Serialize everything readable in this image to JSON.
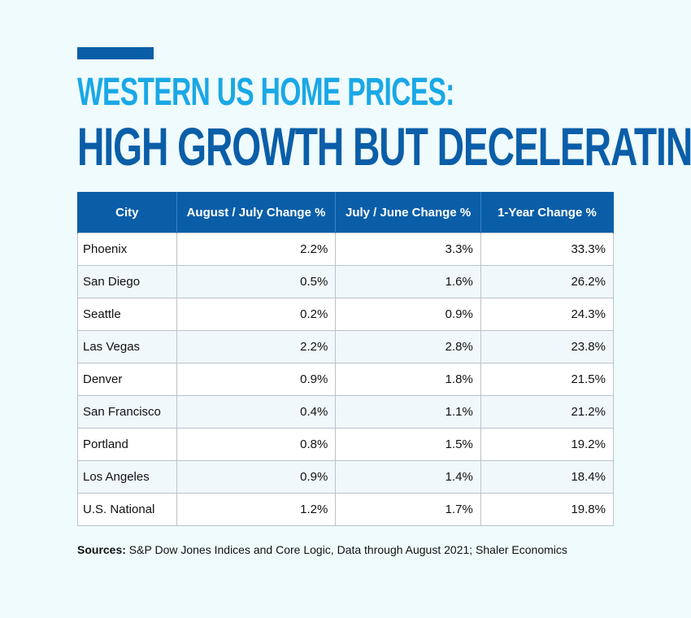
{
  "title": {
    "line1": "WESTERN US HOME PRICES:",
    "line2": "HIGH GROWTH BUT DECELERATING"
  },
  "colors": {
    "accent": "#0a5ea8",
    "title_light": "#1aa8e6",
    "background": "#effbfd"
  },
  "table": {
    "headers": [
      "City",
      "August / July Change %",
      "July / June Change %",
      "1-Year Change %"
    ],
    "rows": [
      {
        "city": "Phoenix",
        "aug_jul": "2.2%",
        "jul_jun": "3.3%",
        "year": "33.3%"
      },
      {
        "city": "San Diego",
        "aug_jul": "0.5%",
        "jul_jun": "1.6%",
        "year": "26.2%"
      },
      {
        "city": "Seattle",
        "aug_jul": "0.2%",
        "jul_jun": "0.9%",
        "year": "24.3%"
      },
      {
        "city": "Las Vegas",
        "aug_jul": "2.2%",
        "jul_jun": "2.8%",
        "year": "23.8%"
      },
      {
        "city": "Denver",
        "aug_jul": "0.9%",
        "jul_jun": "1.8%",
        "year": "21.5%"
      },
      {
        "city": "San Francisco",
        "aug_jul": "0.4%",
        "jul_jun": "1.1%",
        "year": "21.2%"
      },
      {
        "city": "Portland",
        "aug_jul": "0.8%",
        "jul_jun": "1.5%",
        "year": "19.2%"
      },
      {
        "city": "Los Angeles",
        "aug_jul": "0.9%",
        "jul_jun": "1.4%",
        "year": "18.4%"
      },
      {
        "city": "U.S. National",
        "aug_jul": "1.2%",
        "jul_jun": "1.7%",
        "year": "19.8%"
      }
    ]
  },
  "sources": {
    "label": "Sources:",
    "text": " S&P Dow Jones Indices and Core Logic, Data through August 2021; Shaler Economics"
  }
}
